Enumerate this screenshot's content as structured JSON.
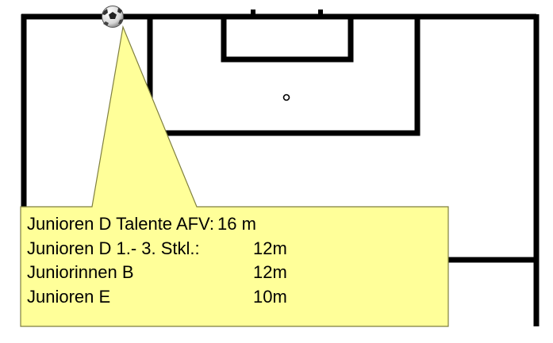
{
  "colors": {
    "lines": "#000000",
    "field": "#ffffff",
    "callout_fill": "#ffff99",
    "callout_stroke": "#7f7f3f"
  },
  "icons": {
    "ball": "soccer-ball-icon"
  },
  "callout": {
    "rows": [
      {
        "label": "Junioren D Talente AFV:",
        "value": "16 m"
      },
      {
        "label": "Junioren D 1.- 3. Stkl.:",
        "value": "12m"
      },
      {
        "label": "Juniorinnen B",
        "value": "12m"
      },
      {
        "label": "Junioren E",
        "value": "10m"
      }
    ]
  }
}
